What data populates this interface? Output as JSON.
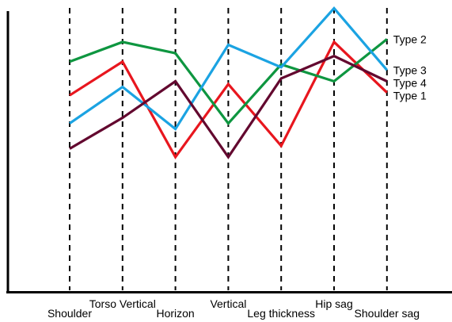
{
  "chart_data": {
    "type": "line",
    "title": "",
    "xlabel": "",
    "ylabel": "",
    "categories": [
      "Shoulder",
      "Torso Vertical",
      "Horizon",
      "Vertical",
      "Leg thickness",
      "Hip sag",
      "Shoulder sag"
    ],
    "ylim": [
      0,
      100
    ],
    "grid": "vertical dashed lines at each category",
    "legend": "labels at right end of each line",
    "series": [
      {
        "name": "Type 1",
        "color": "#e8161e",
        "values": [
          70,
          82,
          48,
          74,
          52,
          89,
          71
        ]
      },
      {
        "name": "Type 2",
        "color": "#0e9640",
        "values": [
          82,
          89,
          85,
          60,
          81,
          75,
          90
        ]
      },
      {
        "name": "Type 3",
        "color": "#1ba3e2",
        "values": [
          60,
          73,
          58,
          88,
          80,
          101,
          79
        ]
      },
      {
        "name": "Type 4",
        "color": "#63082f",
        "values": [
          51,
          62,
          75,
          48,
          76,
          84,
          75
        ]
      }
    ]
  }
}
